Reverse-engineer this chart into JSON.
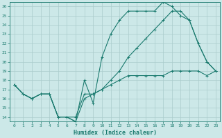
{
  "xlabel": "Humidex (Indice chaleur)",
  "bg_color": "#cce8e8",
  "line_color": "#1a7a6e",
  "grid_color": "#aacccc",
  "xlim": [
    -0.5,
    23.5
  ],
  "ylim": [
    13.5,
    26.5
  ],
  "xticks": [
    0,
    1,
    2,
    3,
    4,
    5,
    6,
    7,
    8,
    9,
    10,
    11,
    12,
    13,
    14,
    15,
    16,
    17,
    18,
    19,
    20,
    21,
    22,
    23
  ],
  "yticks": [
    14,
    15,
    16,
    17,
    18,
    19,
    20,
    21,
    22,
    23,
    24,
    25,
    26
  ],
  "line1_x": [
    0,
    1,
    2,
    3,
    4,
    5,
    6,
    7,
    8,
    9,
    10,
    11,
    12,
    13,
    14,
    15,
    16,
    17,
    18,
    19,
    20,
    21,
    22,
    23
  ],
  "line1_y": [
    17.5,
    16.5,
    16.0,
    16.5,
    16.5,
    14.0,
    14.0,
    13.5,
    18.0,
    15.5,
    20.5,
    23.0,
    24.5,
    25.5,
    25.5,
    25.5,
    25.5,
    26.5,
    26.0,
    25.0,
    24.5,
    22.0,
    20.0,
    19.0
  ],
  "line2_x": [
    0,
    1,
    2,
    3,
    4,
    5,
    6,
    7,
    8,
    9,
    10,
    11,
    12,
    13,
    14,
    15,
    16,
    17,
    18,
    19,
    20,
    21,
    22,
    23
  ],
  "line2_y": [
    17.5,
    16.5,
    16.0,
    16.5,
    16.5,
    14.0,
    14.0,
    13.5,
    16.0,
    16.5,
    17.0,
    18.0,
    19.0,
    20.5,
    21.5,
    22.5,
    23.5,
    24.5,
    25.5,
    25.5,
    24.5,
    22.0,
    20.0,
    19.0
  ],
  "line3_x": [
    0,
    1,
    2,
    3,
    4,
    5,
    6,
    7,
    8,
    9,
    10,
    11,
    12,
    13,
    14,
    15,
    16,
    17,
    18,
    19,
    20,
    21,
    22,
    23
  ],
  "line3_y": [
    17.5,
    16.5,
    16.0,
    16.5,
    16.5,
    14.0,
    14.0,
    14.0,
    16.5,
    16.5,
    17.0,
    17.5,
    18.0,
    18.5,
    18.5,
    18.5,
    18.5,
    18.5,
    19.0,
    19.0,
    19.0,
    19.0,
    18.5,
    19.0
  ],
  "tick_fontsize": 4.5,
  "xlabel_fontsize": 6.0,
  "marker_size": 3.0,
  "line_width": 0.8
}
